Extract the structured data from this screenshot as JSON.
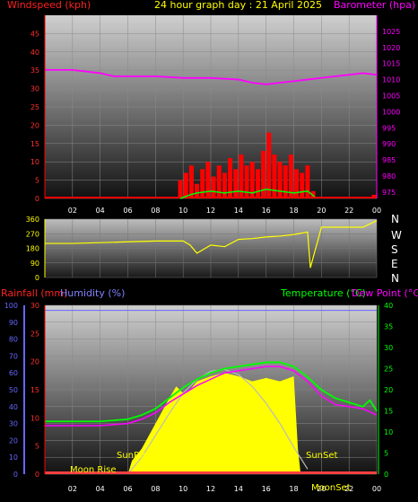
{
  "header": {
    "wind_label": "Windspeed (kph)",
    "title": "24 hour graph day : 21 April 2025",
    "baro_label": "Barometer (hpa)"
  },
  "middle": {
    "compass": [
      "N",
      "W",
      "S",
      "E",
      "N"
    ]
  },
  "lower_header": {
    "rain_label": "Rainfall (mm)",
    "humidity_label": "Humidity (%)",
    "temp_label": "Temperature (°C)",
    "dew_label": "Dew Point (°C)"
  },
  "annotations": {
    "sunrise": "SunRise",
    "sunset": "SunSet",
    "moonrise": "Moon Rise",
    "moonset": "MoonSet"
  },
  "colors": {
    "wind": "#ff0000",
    "gust": "#ff0000",
    "avg_wind": "#00ff00",
    "barometer": "#ff00ff",
    "direction": "#ffff00",
    "temperature": "#00ff00",
    "dew_point": "#ff00ff",
    "humidity": "#6666ff",
    "solar": "#ffff00",
    "title": "#ffff00"
  },
  "chart_data": [
    {
      "type": "bar",
      "name": "wind-barometer",
      "x_ticks": [
        "02",
        "04",
        "06",
        "08",
        "10",
        "12",
        "14",
        "16",
        "18",
        "20",
        "22",
        "00"
      ],
      "y_left_ticks": [
        0,
        5,
        10,
        15,
        20,
        25,
        30,
        35,
        40,
        45
      ],
      "y_left_range": [
        0,
        50
      ],
      "y_right_ticks": [
        975,
        980,
        985,
        990,
        995,
        1000,
        1005,
        1010,
        1015,
        1020,
        1025
      ],
      "y_right_range": [
        973,
        1030
      ],
      "barometer": {
        "x": [
          0,
          2,
          4,
          5,
          6,
          8,
          10,
          12,
          14,
          15,
          16,
          17,
          18,
          19,
          20,
          21,
          22,
          23,
          24
        ],
        "y": [
          1013,
          1013,
          1012,
          1011,
          1011,
          1011,
          1010.5,
          1010.5,
          1010,
          1009,
          1008.5,
          1009,
          1009.5,
          1010,
          1010.5,
          1011,
          1011.5,
          1012,
          1011.5
        ]
      },
      "gust": {
        "x": [
          9.8,
          10.2,
          10.6,
          11,
          11.4,
          11.8,
          12.2,
          12.6,
          13,
          13.4,
          13.8,
          14.2,
          14.6,
          15,
          15.4,
          15.8,
          16.2,
          16.6,
          17,
          17.4,
          17.8,
          18.2,
          18.6,
          19,
          19.4,
          23.8
        ],
        "y": [
          5,
          7,
          9,
          4,
          8,
          10,
          6,
          9,
          7,
          11,
          8,
          12,
          9,
          10,
          8,
          13,
          18,
          12,
          10,
          9,
          12,
          8,
          7,
          9,
          2,
          1
        ]
      },
      "avg_wind": {
        "x": [
          9.8,
          10.5,
          11,
          12,
          13,
          14,
          15,
          16,
          17,
          18,
          19,
          19.5
        ],
        "y": [
          0,
          1,
          1.5,
          2,
          1.5,
          2,
          1.5,
          2.5,
          2,
          1.5,
          2,
          0.5
        ]
      }
    },
    {
      "type": "scatter",
      "name": "wind-direction",
      "y_ticks": [
        0,
        90,
        180,
        270,
        360
      ],
      "y_range": [
        0,
        360
      ],
      "x": [
        0,
        2,
        4,
        6,
        8,
        10,
        10.5,
        11,
        12,
        13,
        14,
        15,
        16,
        17,
        18,
        19,
        19.2,
        20,
        22,
        23,
        24
      ],
      "y": [
        210,
        210,
        215,
        220,
        225,
        225,
        200,
        150,
        200,
        190,
        235,
        240,
        250,
        255,
        265,
        280,
        60,
        310,
        310,
        310,
        350
      ]
    },
    {
      "type": "area",
      "name": "temperature-humidity-rain",
      "x_ticks": [
        "02",
        "04",
        "06",
        "08",
        "10",
        "12",
        "14",
        "16",
        "18",
        "20",
        "22",
        "00"
      ],
      "y_left_ticks": [
        0,
        10,
        20,
        30,
        40,
        50,
        60,
        70,
        80,
        90,
        100
      ],
      "y_left_range": [
        0,
        100
      ],
      "y_rain_ticks": [
        0,
        5,
        10,
        15,
        20,
        25,
        30
      ],
      "y_right_ticks": [
        0,
        5,
        10,
        15,
        20,
        25,
        30,
        35,
        40
      ],
      "y_right_range": [
        0,
        40
      ],
      "humidity": {
        "x": [
          0,
          24
        ],
        "y": [
          97,
          97
        ]
      },
      "temperature": {
        "x": [
          0,
          2,
          4,
          6,
          7,
          8,
          9,
          10,
          11,
          12,
          13,
          14,
          15,
          16,
          17,
          18,
          19,
          20,
          21,
          22,
          23,
          23.5,
          24
        ],
        "y": [
          12.5,
          12.5,
          12.5,
          13,
          14,
          15.5,
          18,
          20.5,
          22.5,
          24,
          25,
          25.5,
          26,
          26.5,
          26.5,
          25.5,
          23,
          20,
          18,
          17,
          16,
          17.5,
          15
        ]
      },
      "dew_point": {
        "x": [
          0,
          2,
          4,
          6,
          7,
          8,
          9,
          10,
          11,
          12,
          13,
          14,
          15,
          16,
          17,
          18,
          19,
          20,
          21,
          22,
          23,
          24
        ],
        "y": [
          11.5,
          11.5,
          11.5,
          12,
          13,
          14.5,
          17,
          19,
          21,
          22.5,
          24,
          24.5,
          25,
          25.5,
          25.5,
          24.5,
          22,
          18.5,
          16.5,
          16,
          15.5,
          14
        ]
      },
      "solar": {
        "x": [
          6,
          6.3,
          7,
          8,
          9,
          9.5,
          10,
          10.5,
          11,
          12,
          13,
          14,
          15,
          16,
          17,
          18,
          18.3,
          18.5
        ],
        "y": [
          0,
          8,
          15,
          30,
          45,
          52,
          48,
          50,
          55,
          58,
          60,
          58,
          55,
          57,
          55,
          58,
          15,
          0
        ]
      },
      "solar_theoretical": {
        "x": [
          6,
          7,
          8,
          9,
          10,
          11,
          12,
          13,
          14,
          15,
          16,
          17,
          18,
          19
        ],
        "y": [
          0,
          10,
          23,
          36,
          48,
          56,
          61,
          62,
          59,
          52,
          42,
          30,
          16,
          3
        ]
      }
    }
  ]
}
